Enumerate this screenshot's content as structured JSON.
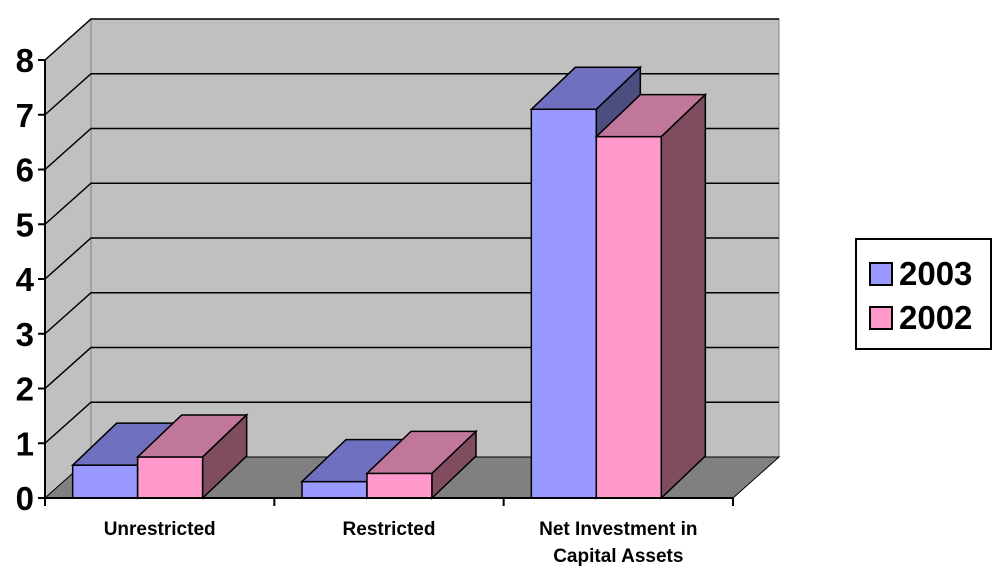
{
  "chart_data": {
    "type": "bar",
    "categories": [
      "Unrestricted",
      "Restricted",
      "Net Investment in Capital Assets"
    ],
    "category_lines": [
      [
        "Unrestricted"
      ],
      [
        "Restricted"
      ],
      [
        "Net Investment in",
        "Capital Assets"
      ]
    ],
    "series": [
      {
        "name": "2003",
        "values": [
          0.6,
          0.3,
          7.1
        ],
        "color": "#9999ff",
        "top_color": "#7070c0",
        "side_color": "#4d4d80"
      },
      {
        "name": "2002",
        "values": [
          0.75,
          0.45,
          6.6
        ],
        "color": "#ff99cc",
        "top_color": "#c07799",
        "side_color": "#804d60"
      }
    ],
    "yticks": [
      "0",
      "1",
      "2",
      "3",
      "4",
      "5",
      "6",
      "7",
      "8"
    ],
    "ylim": [
      0,
      8
    ],
    "grid": true,
    "legend_position": "right",
    "wall_color": "#c0c0c0",
    "floor_color": "#808080"
  }
}
